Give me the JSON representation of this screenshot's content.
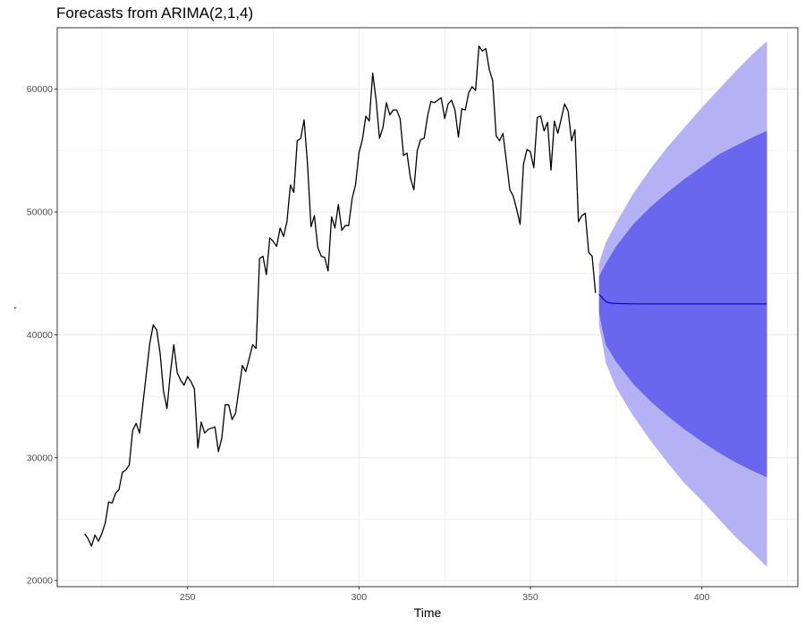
{
  "chart_data": {
    "type": "line",
    "title": "Forecasts from ARIMA(2,1,4)",
    "xlabel": "Time",
    "ylabel": ".",
    "xlim": [
      212,
      428
    ],
    "ylim": [
      19500,
      65000
    ],
    "x_ticks": [
      250,
      300,
      350,
      400
    ],
    "y_ticks": [
      20000,
      30000,
      40000,
      50000,
      60000
    ],
    "x_tick_labels": [
      "250",
      "300",
      "350",
      "400"
    ],
    "y_tick_labels": [
      "20000",
      "30000",
      "40000",
      "50000",
      "60000"
    ],
    "grid": true,
    "colors": {
      "series": "#000000",
      "forecast": "#0000ee",
      "pi80": "#6b66ee",
      "pi95": "#b4b2f4",
      "grid": "#ebebeb",
      "panel_border": "#333333"
    },
    "series": [
      {
        "role": "observed",
        "x_start": 220,
        "values": [
          23800,
          23400,
          22800,
          23700,
          23200,
          23800,
          24700,
          26400,
          26300,
          27100,
          27400,
          28800,
          29000,
          29400,
          32200,
          32800,
          32000,
          34400,
          36900,
          39300,
          40800,
          40400,
          38500,
          35400,
          34000,
          36900,
          39200,
          36900,
          36300,
          35900,
          36600,
          36200,
          35600,
          30800,
          32900,
          32000,
          32300,
          32400,
          32500,
          30500,
          31600,
          34300,
          34300,
          33100,
          33600,
          35600,
          37500,
          37000,
          38100,
          39200,
          38900,
          46200,
          46400,
          44900,
          47900,
          47600,
          47200,
          48700,
          48000,
          49200,
          52200,
          51600,
          55800,
          56000,
          57500,
          53900,
          48800,
          49700,
          47100,
          46400,
          46300,
          45200,
          49600,
          48700,
          50600,
          48500,
          48900,
          48900,
          51100,
          52200,
          54800,
          55900,
          57800,
          57400,
          61300,
          59100,
          56000,
          56900,
          58900,
          57900,
          58300,
          58300,
          57600,
          54600,
          54800,
          52800,
          51800,
          55000,
          55900,
          56000,
          57800,
          59000,
          58900,
          59100,
          59300,
          57600,
          58800,
          59100,
          58300,
          56100,
          58400,
          58300,
          59700,
          60200,
          59900,
          63500,
          63100,
          63300,
          61600,
          60700,
          56200,
          55800,
          56400,
          54100,
          51800,
          51300,
          50200,
          49000,
          53900,
          55100,
          54900,
          53600,
          57700,
          57800,
          56600,
          57300,
          53400,
          57400,
          56400,
          57600,
          58800,
          58200,
          55800,
          56700,
          49200,
          49700,
          49900,
          46700,
          46400,
          43400
        ]
      },
      {
        "role": "forecast",
        "x": [
          370,
          371,
          372,
          373,
          375,
          380,
          390,
          400,
          410,
          419
        ],
        "values": [
          43300,
          43000,
          42700,
          42600,
          42550,
          42520,
          42520,
          42520,
          42520,
          42520
        ]
      }
    ],
    "intervals": [
      {
        "level": 95,
        "x": [
          370,
          371,
          372,
          375,
          380,
          385,
          390,
          395,
          400,
          405,
          410,
          415,
          419
        ],
        "upper": [
          45800,
          46700,
          47500,
          49100,
          51500,
          53500,
          55300,
          56900,
          58500,
          60000,
          61500,
          62900,
          63900
        ],
        "lower": [
          40800,
          39300,
          37700,
          35700,
          33400,
          31400,
          29600,
          27900,
          26500,
          25000,
          23500,
          22200,
          21100
        ]
      },
      {
        "level": 80,
        "x": [
          370,
          371,
          372,
          375,
          380,
          385,
          390,
          395,
          400,
          405,
          410,
          415,
          419
        ],
        "upper": [
          44700,
          45300,
          45800,
          47200,
          49000,
          50400,
          51600,
          52700,
          53700,
          54700,
          55400,
          56100,
          56600
        ],
        "lower": [
          41800,
          40400,
          39200,
          37800,
          36000,
          34600,
          33400,
          32300,
          31300,
          30400,
          29600,
          28900,
          28400
        ]
      }
    ]
  }
}
